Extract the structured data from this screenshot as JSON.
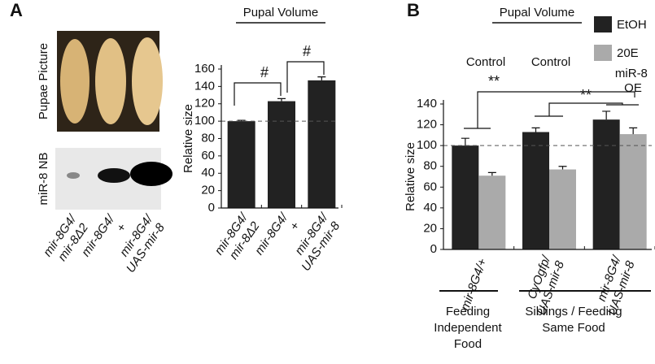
{
  "panel_a": {
    "label": "A",
    "photo_label": "Pupae Picture",
    "blot_label": "miR-8 NB",
    "genotypes": [
      "mir-8G4/mir-8Δ2",
      "mir-8G4/+",
      "mir-8G4/UAS-mir-8"
    ]
  },
  "panel_b": {
    "label": "B",
    "controls": [
      "Control",
      "Control"
    ],
    "group_labels": [
      [
        "Feeding",
        "Independent",
        "Food"
      ],
      [
        "Siblings / Feeding",
        "Same Food"
      ]
    ]
  },
  "chart_data": [
    {
      "type": "bar",
      "title": "Pupal Volume",
      "y_label": "Relative size",
      "categories": [
        "mir-8G4/mir-8Δ2",
        "mir-8G4/+",
        "mir-8G4/UAS-mir-8"
      ],
      "series": [
        {
          "name": "Relative size",
          "color": "#222222",
          "values": [
            100,
            123,
            147
          ],
          "errors": [
            1,
            3,
            4
          ]
        }
      ],
      "ylim": [
        0,
        160
      ],
      "yticks": [
        0,
        20,
        40,
        60,
        80,
        100,
        120,
        140,
        160
      ],
      "reference_line": 100,
      "annotations": [
        "#",
        "#"
      ],
      "legend": false
    },
    {
      "type": "bar",
      "title": "Pupal Volume",
      "y_label": "Relative size",
      "categories": [
        "mir-8G4/+",
        "CyOgfp/UAS-mir-8",
        "mir-8G4/UAS-mir-8"
      ],
      "series": [
        {
          "name": "EtOH",
          "color": "#222222",
          "values": [
            100,
            113,
            125
          ],
          "errors": [
            7,
            4,
            8
          ]
        },
        {
          "name": "20E",
          "color": "#aaaaaa",
          "values": [
            71,
            77,
            111
          ],
          "errors": [
            3,
            3,
            6
          ]
        }
      ],
      "ylim": [
        0,
        140
      ],
      "yticks": [
        0,
        20,
        40,
        60,
        80,
        100,
        120,
        140
      ],
      "reference_line": 100,
      "annotations": [
        "**",
        "**"
      ],
      "legend": true,
      "legend_note": "miR-8 OE"
    }
  ]
}
